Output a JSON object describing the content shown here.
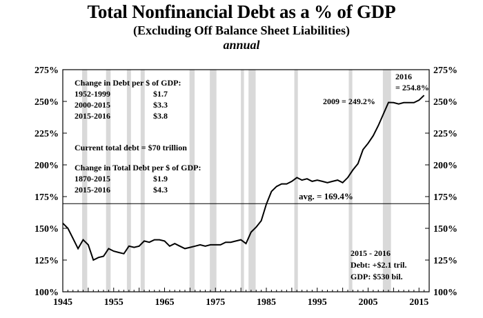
{
  "title": "Total Nonfinancial Debt as a % of GDP",
  "subtitle": "(Excluding Off Balance Sheet Liabilities)",
  "frequency": "annual",
  "chart_data": {
    "type": "line",
    "title": "Total Nonfinancial Debt as a % of GDP",
    "subtitle": "(Excluding Off Balance Sheet Liabilities)",
    "xlim": [
      1945,
      2017
    ],
    "ylim": [
      100,
      275
    ],
    "x_ticks": [
      1945,
      1955,
      1965,
      1975,
      1985,
      1995,
      2005,
      2015
    ],
    "y_ticks": [
      100,
      125,
      150,
      175,
      200,
      225,
      250,
      275
    ],
    "y_tick_labels": [
      "100%",
      "125%",
      "150%",
      "175%",
      "200%",
      "225%",
      "250%",
      "275%"
    ],
    "x_tick_labels": [
      "1945",
      "1955",
      "1965",
      "1975",
      "1985",
      "1995",
      "2005",
      "2015"
    ],
    "grid": false,
    "recession_color": "#d9d9d9",
    "line_color": "#000000",
    "recessions": [
      [
        1948.8,
        1949.8
      ],
      [
        1953.5,
        1954.4
      ],
      [
        1957.6,
        1958.4
      ],
      [
        1960.3,
        1961.1
      ],
      [
        1969.9,
        1970.9
      ],
      [
        1973.9,
        1975.2
      ],
      [
        1980.0,
        1980.6
      ],
      [
        1981.5,
        1982.9
      ],
      [
        1990.5,
        1991.2
      ],
      [
        2001.2,
        2001.9
      ],
      [
        2007.9,
        2009.5
      ]
    ],
    "series": [
      {
        "x": [
          1945,
          1946,
          1947,
          1948,
          1949,
          1950,
          1951,
          1952,
          1953,
          1954,
          1955,
          1956,
          1957,
          1958,
          1959,
          1960,
          1961,
          1962,
          1963,
          1964,
          1965,
          1966,
          1967,
          1968,
          1969,
          1970,
          1971,
          1972,
          1973,
          1974,
          1975,
          1976,
          1977,
          1978,
          1979,
          1980,
          1981,
          1982,
          1983,
          1984,
          1985,
          1986,
          1987,
          1988,
          1989,
          1990,
          1991,
          1992,
          1993,
          1994,
          1995,
          1996,
          1997,
          1998,
          1999,
          2000,
          2001,
          2002,
          2003,
          2004,
          2005,
          2006,
          2007,
          2008,
          2009,
          2010,
          2011,
          2012,
          2013,
          2014,
          2015,
          2016
        ],
        "values": [
          154,
          150,
          142,
          134,
          141,
          137,
          125,
          127,
          128,
          134,
          132,
          131,
          130,
          136,
          135,
          136,
          140,
          139,
          141,
          141,
          140,
          136,
          138,
          136,
          134,
          135,
          136,
          137,
          136,
          137,
          137,
          137,
          139,
          139,
          140,
          141,
          138,
          147,
          151,
          156,
          169,
          179,
          183,
          185,
          185,
          187,
          190,
          188,
          189,
          187,
          188,
          187,
          186,
          187,
          188,
          186,
          190,
          196,
          201,
          212,
          217,
          223,
          231,
          240,
          249.2,
          249,
          248,
          249,
          249,
          249,
          251,
          254.8
        ]
      }
    ],
    "average": {
      "value": 169.4,
      "label": "avg.  = 169.4%"
    },
    "annotations": {
      "change_per_dollar_title": "Change in Debt per $ of GDP:",
      "change_per_dollar_rows": [
        [
          "1952-1999",
          "$1.7"
        ],
        [
          "2000-2015",
          "$3.3"
        ],
        [
          "2015-2016",
          "$3.8"
        ]
      ],
      "current_total": "Current total debt = $70 trillion",
      "total_change_title": "Change in Total Debt per $ of GDP:",
      "total_change_rows": [
        [
          "1870-2015",
          "$1.9"
        ],
        [
          "2015-2016",
          "$4.3"
        ]
      ],
      "peak_2009": "2009 = 249.2%",
      "label_2016_line1": "2016",
      "label_2016_line2": "= 254.8%",
      "box_line1": "2015 - 2016",
      "box_line2": "Debt:  +$2.1 tril.",
      "box_line3": "GDP:  $530 bil."
    }
  }
}
